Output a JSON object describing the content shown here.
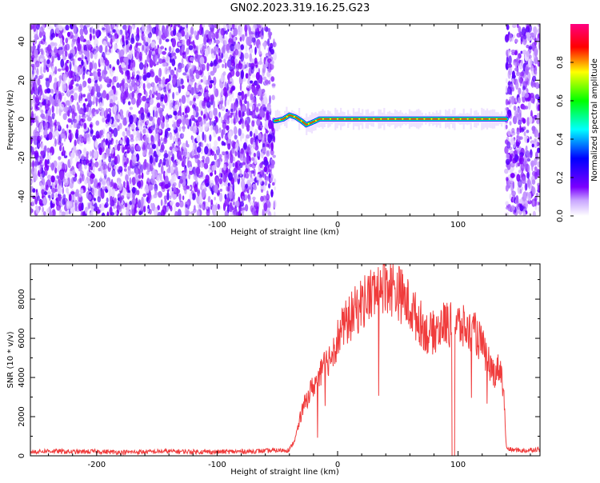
{
  "title": "GN02.2023.319.16.25.G23",
  "chart_data": [
    {
      "type": "heatmap",
      "xlabel": "Height of straight line (km)",
      "ylabel": "Frequency (Hz)",
      "xlim": [
        -255,
        168
      ],
      "ylim": [
        -50,
        49
      ],
      "xticks": [
        -200,
        -100,
        0,
        100
      ],
      "yticks": [
        -40,
        -20,
        0,
        20,
        40
      ],
      "colorbar": {
        "label": "Normalized spectral amplitude",
        "range": [
          0,
          1
        ],
        "ticks": [
          "0.0",
          "0.2",
          "0.4",
          "0.6",
          "0.8"
        ],
        "colors": [
          "#ffffff",
          "#7b00ff",
          "#0000ff",
          "#00ffff",
          "#00ff00",
          "#ffff00",
          "#ff0000",
          "#ff0080"
        ]
      },
      "noise_regions_km": [
        [
          -255,
          -52
        ],
        [
          140,
          168
        ]
      ],
      "signal_band": {
        "x_start": -52,
        "x_end": 140,
        "center_frequency_hz": 0,
        "trace": [
          {
            "x": -52,
            "y": -1
          },
          {
            "x": -45,
            "y": 0
          },
          {
            "x": -40,
            "y": 2
          },
          {
            "x": -35,
            "y": 1
          },
          {
            "x": -30,
            "y": -1
          },
          {
            "x": -26,
            "y": -3
          },
          {
            "x": -22,
            "y": -2
          },
          {
            "x": -15,
            "y": 0
          },
          {
            "x": 0,
            "y": 0
          },
          {
            "x": 40,
            "y": 0
          },
          {
            "x": 80,
            "y": 0
          },
          {
            "x": 120,
            "y": 0
          },
          {
            "x": 140,
            "y": 0
          }
        ]
      }
    },
    {
      "type": "line",
      "xlabel": "Height of straight line (km)",
      "ylabel": "SNR (10 * v/v)",
      "xlim": [
        -255,
        168
      ],
      "ylim": [
        0,
        9800
      ],
      "xticks": [
        -200,
        -100,
        0,
        100
      ],
      "yticks": [
        0,
        2000,
        4000,
        6000,
        8000
      ],
      "color": "#f03c3c",
      "x": [
        -255,
        -240,
        -220,
        -200,
        -180,
        -160,
        -140,
        -120,
        -100,
        -80,
        -60,
        -40,
        -35,
        -30,
        -25,
        -20,
        -15,
        -10,
        -5,
        0,
        5,
        10,
        15,
        20,
        25,
        30,
        35,
        40,
        45,
        50,
        55,
        60,
        65,
        70,
        75,
        80,
        85,
        90,
        95,
        100,
        105,
        110,
        115,
        120,
        125,
        130,
        135,
        138,
        140,
        142,
        145,
        150,
        155,
        160,
        168
      ],
      "values": [
        200,
        250,
        200,
        220,
        180,
        200,
        230,
        210,
        200,
        220,
        250,
        300,
        900,
        2200,
        3000,
        3600,
        4000,
        4700,
        5200,
        6000,
        6600,
        7000,
        7400,
        7800,
        8100,
        8300,
        8600,
        8900,
        8600,
        8400,
        8000,
        7600,
        7100,
        6700,
        6200,
        6300,
        6600,
        6800,
        6600,
        6700,
        6500,
        6300,
        6200,
        5600,
        4800,
        4200,
        4600,
        3200,
        400,
        350,
        300,
        300,
        250,
        300,
        350
      ]
    }
  ]
}
